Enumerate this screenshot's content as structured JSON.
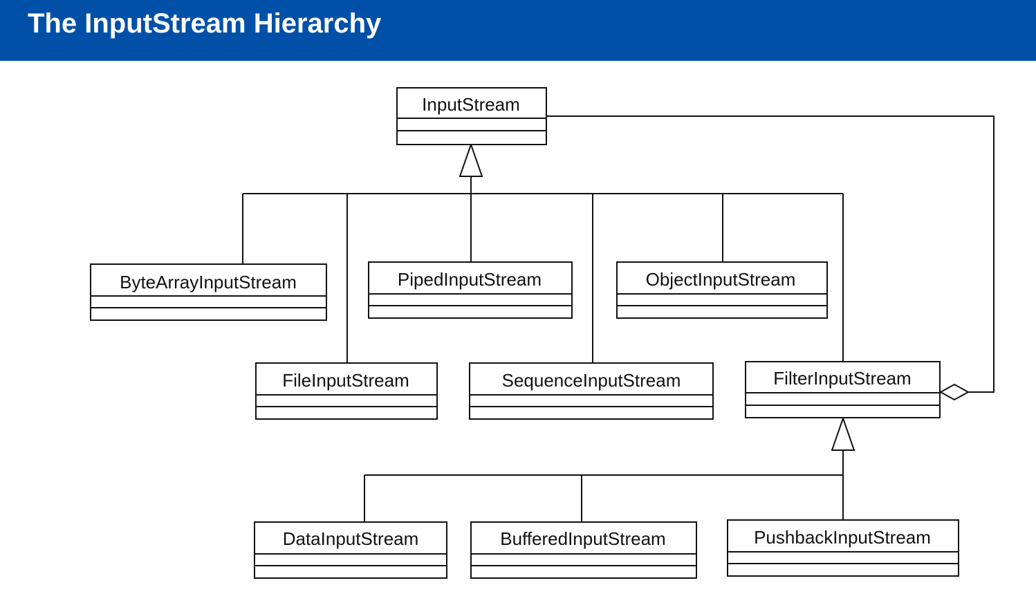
{
  "slide": {
    "title": "The InputStream Hierarchy"
  },
  "diagram": {
    "classes": {
      "input_stream": "InputStream",
      "byte_array_input_stream": "ByteArrayInputStream",
      "piped_input_stream": "PipedInputStream",
      "object_input_stream": "ObjectInputStream",
      "file_input_stream": "FileInputStream",
      "sequence_input_stream": "SequenceInputStream",
      "filter_input_stream": "FilterInputStream",
      "data_input_stream": "DataInputStream",
      "buffered_input_stream": "BufferedInputStream",
      "pushback_input_stream": "PushbackInputStream"
    },
    "colors": {
      "title_bar": "#0050a8",
      "lines": "#111111"
    }
  }
}
